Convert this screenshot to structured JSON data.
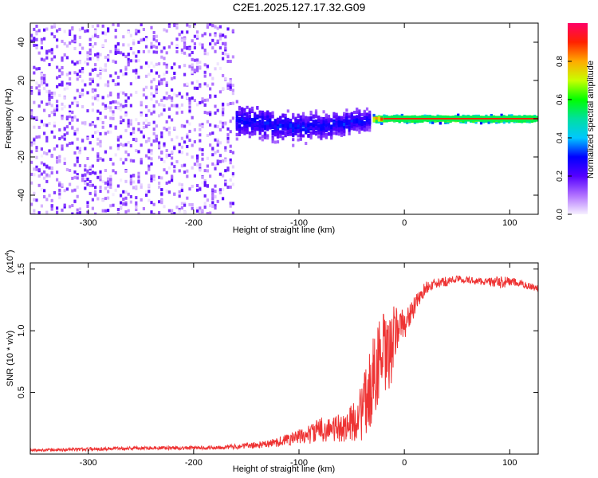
{
  "title": "C2E1.2025.127.17.32.G09",
  "chart_data": [
    {
      "type": "heatmap",
      "xlabel": "Height of straight line (km)",
      "ylabel": "Frequency (Hz)",
      "xlim": [
        -355,
        127
      ],
      "ylim": [
        -50,
        50
      ],
      "xticks": [
        -300,
        -200,
        -100,
        0,
        100
      ],
      "yticks": [
        -40,
        -20,
        0,
        20,
        40
      ],
      "xtick_labels": [
        "-300",
        "-200",
        "-100",
        "0",
        "100"
      ],
      "ytick_labels": [
        "-40",
        "-20",
        "0",
        "20",
        "40"
      ],
      "colorbar": {
        "label": "Normalized spectral amplitude",
        "range": [
          0,
          1
        ],
        "ticks": [
          0.0,
          0.2,
          0.4,
          0.6,
          0.8
        ],
        "tick_labels": [
          "0.0",
          "0.2",
          "0.4",
          "0.6",
          "0.8"
        ]
      },
      "regions": [
        {
          "x": [
            -355,
            -160
          ],
          "freq_spread": 50,
          "amplitude": [
            0.0,
            0.2
          ],
          "note": "noise"
        },
        {
          "x": [
            -160,
            -30
          ],
          "freq_center": 0,
          "freq_spread": 10,
          "amplitude": [
            0.1,
            0.35
          ]
        },
        {
          "x": [
            -30,
            127
          ],
          "freq_center": 0,
          "freq_spread": 2,
          "amplitude": [
            0.3,
            0.95
          ]
        }
      ],
      "line_trace": {
        "x": [
          -20,
          127
        ],
        "freq": 0,
        "amplitude": 0.9
      }
    },
    {
      "type": "line",
      "xlabel": "Height of straight line (km)",
      "ylabel": "SNR (10 * v/v)",
      "scale_label": "(x10",
      "scale_exp": "4",
      "xlim": [
        -355,
        127
      ],
      "ylim": [
        0,
        1.55
      ],
      "xticks": [
        -300,
        -200,
        -100,
        0,
        100
      ],
      "yticks": [
        0.5,
        1.0,
        1.5
      ],
      "xtick_labels": [
        "-300",
        "-200",
        "-100",
        "0",
        "100"
      ],
      "ytick_labels": [
        "0.5",
        "1.0",
        "1.5"
      ],
      "series": [
        {
          "color": "#ee3333",
          "x": [
            -355,
            -300,
            -250,
            -200,
            -160,
            -130,
            -110,
            -100,
            -90,
            -80,
            -70,
            -60,
            -50,
            -40,
            -35,
            -30,
            -25,
            -20,
            -15,
            -10,
            -5,
            0,
            10,
            20,
            30,
            40,
            50,
            60,
            70,
            80,
            90,
            100,
            110,
            120,
            127
          ],
          "y": [
            0.03,
            0.04,
            0.05,
            0.05,
            0.06,
            0.08,
            0.12,
            0.14,
            0.16,
            0.2,
            0.2,
            0.21,
            0.25,
            0.35,
            0.45,
            0.6,
            0.75,
            0.8,
            0.75,
            0.95,
            1.05,
            1.05,
            1.2,
            1.35,
            1.38,
            1.4,
            1.42,
            1.41,
            1.4,
            1.4,
            1.39,
            1.4,
            1.38,
            1.36,
            1.34
          ],
          "noise": [
            0.01,
            0.015,
            0.015,
            0.015,
            0.02,
            0.03,
            0.05,
            0.06,
            0.08,
            0.1,
            0.1,
            0.12,
            0.15,
            0.25,
            0.3,
            0.35,
            0.35,
            0.35,
            0.35,
            0.25,
            0.15,
            0.12,
            0.08,
            0.05,
            0.04,
            0.04,
            0.03,
            0.03,
            0.03,
            0.03,
            0.05,
            0.04,
            0.03,
            0.03,
            0.03
          ]
        }
      ]
    }
  ]
}
